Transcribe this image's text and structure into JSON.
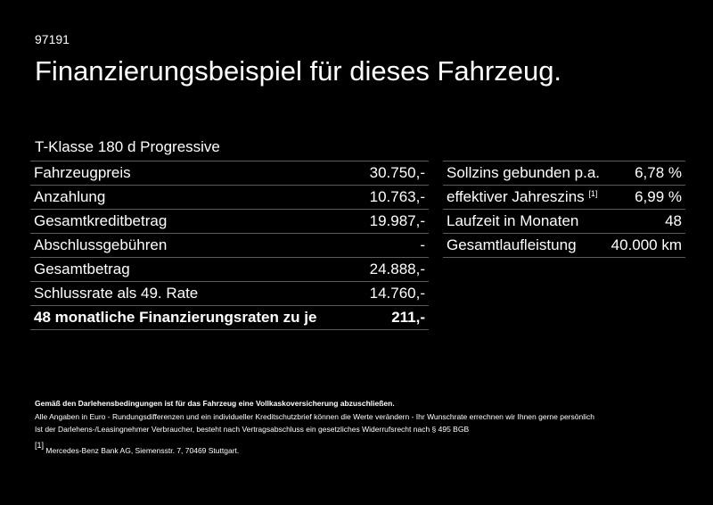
{
  "code": "97191",
  "title": "Finanzierungsbeispiel für dieses Fahrzeug.",
  "model": "T-Klasse 180 d Progressive",
  "left_table": [
    {
      "label": "Fahrzeugpreis",
      "value": "30.750,-"
    },
    {
      "label": "Anzahlung",
      "value": "10.763,-"
    },
    {
      "label": "Gesamtkreditbetrag",
      "value": "19.987,-"
    },
    {
      "label": "Abschlussgebühren",
      "value": "-"
    },
    {
      "label": "Gesamtbetrag",
      "value": "24.888,-"
    },
    {
      "label": "Schlussrate als 49. Rate",
      "value": "14.760,-"
    },
    {
      "label": "48 monatliche Finanzierungsraten zu je",
      "value": "211,-"
    }
  ],
  "right_table": [
    {
      "label": "Sollzins gebunden p.a.",
      "sup": "",
      "value": "6,78 %"
    },
    {
      "label": "effektiver Jahreszins",
      "sup": "[1]",
      "value": "6,99 %"
    },
    {
      "label": "Laufzeit in Monaten",
      "sup": "",
      "value": "48"
    },
    {
      "label": "Gesamtlaufleistung",
      "sup": "",
      "value": "40.000 km"
    }
  ],
  "notes": {
    "insurance": "Gemäß den Darlehensbedingungen ist für das Fahrzeug eine Vollkaskoversicherung abzuschließen.",
    "line1": "Alle Angaben in Euro - Rundungsdifferenzen und ein individueller Kreditschutzbrief können die Werte verändern - Ihr Wunschrate errechnen wir Ihnen gerne persönlich",
    "line2": "Ist der Darlehens-/Leasingnehmer Verbraucher, besteht nach Vertragsabschluss ein gesetzliches Widerrufsrecht nach § 495 BGB",
    "footnote_mark": "[1]",
    "footnote": "Mercedes-Benz Bank AG, Siemensstr. 7, 70469 Stuttgart."
  }
}
